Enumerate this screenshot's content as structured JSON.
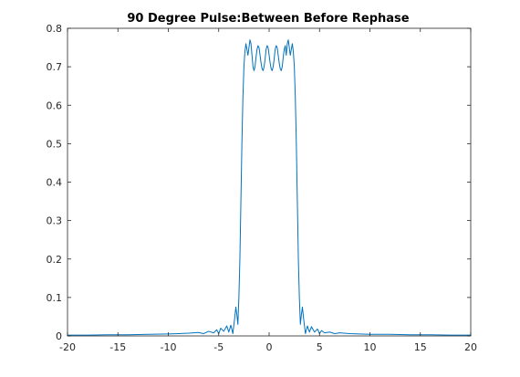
{
  "chart_data": {
    "type": "line",
    "title": "90 Degree Pulse:Between Before Rephase",
    "xlabel": "",
    "ylabel": "",
    "xlim": [
      -20,
      20
    ],
    "ylim": [
      0,
      0.8
    ],
    "xticks": [
      -20,
      -15,
      -10,
      -5,
      0,
      5,
      10,
      15,
      20
    ],
    "xtick_labels": [
      "-20",
      "-15",
      "-10",
      "-5",
      "0",
      "5",
      "10",
      "15",
      "20"
    ],
    "yticks": [
      0,
      0.1,
      0.2,
      0.3,
      0.4,
      0.5,
      0.6,
      0.7,
      0.8
    ],
    "ytick_labels": [
      "0",
      "0.1",
      "0.2",
      "0.3",
      "0.4",
      "0.5",
      "0.6",
      "0.7",
      "0.8"
    ],
    "grid": false,
    "series": [
      {
        "color": "#0072bd",
        "x": [
          -20,
          -18,
          -16,
          -14,
          -12,
          -10,
          -9,
          -8,
          -7,
          -6.5,
          -6,
          -5.5,
          -5.2,
          -5,
          -4.8,
          -4.5,
          -4.2,
          -4.0,
          -3.8,
          -3.6,
          -3.4,
          -3.3,
          -3.2,
          -3.1,
          -3.0,
          -2.9,
          -2.8,
          -2.7,
          -2.6,
          -2.5,
          -2.4,
          -2.3,
          -2.2,
          -2.1,
          -2.0,
          -1.9,
          -1.8,
          -1.7,
          -1.6,
          -1.5,
          -1.4,
          -1.3,
          -1.2,
          -1.1,
          -1.0,
          -0.9,
          -0.8,
          -0.7,
          -0.6,
          -0.5,
          -0.4,
          -0.3,
          -0.2,
          -0.1,
          0,
          0.1,
          0.2,
          0.3,
          0.4,
          0.5,
          0.6,
          0.7,
          0.8,
          0.9,
          1.0,
          1.1,
          1.2,
          1.3,
          1.4,
          1.5,
          1.6,
          1.7,
          1.8,
          1.9,
          2.0,
          2.1,
          2.2,
          2.3,
          2.4,
          2.5,
          2.6,
          2.7,
          2.8,
          2.9,
          3.0,
          3.1,
          3.2,
          3.3,
          3.4,
          3.6,
          3.8,
          4.0,
          4.2,
          4.5,
          4.8,
          5.0,
          5.2,
          5.5,
          6,
          6.5,
          7,
          8,
          9,
          10,
          12,
          14,
          16,
          18,
          20
        ],
        "y": [
          0.002,
          0.002,
          0.003,
          0.003,
          0.004,
          0.005,
          0.006,
          0.007,
          0.009,
          0.006,
          0.012,
          0.008,
          0.016,
          0.006,
          0.02,
          0.012,
          0.026,
          0.01,
          0.028,
          0.006,
          0.05,
          0.075,
          0.055,
          0.03,
          0.1,
          0.2,
          0.35,
          0.5,
          0.62,
          0.7,
          0.74,
          0.76,
          0.745,
          0.73,
          0.75,
          0.77,
          0.76,
          0.73,
          0.7,
          0.69,
          0.7,
          0.725,
          0.745,
          0.755,
          0.75,
          0.73,
          0.71,
          0.695,
          0.69,
          0.7,
          0.72,
          0.745,
          0.755,
          0.75,
          0.73,
          0.71,
          0.695,
          0.69,
          0.7,
          0.72,
          0.745,
          0.755,
          0.75,
          0.73,
          0.71,
          0.695,
          0.69,
          0.7,
          0.725,
          0.745,
          0.755,
          0.73,
          0.76,
          0.77,
          0.75,
          0.73,
          0.745,
          0.76,
          0.74,
          0.7,
          0.62,
          0.5,
          0.35,
          0.2,
          0.1,
          0.03,
          0.055,
          0.075,
          0.05,
          0.006,
          0.026,
          0.01,
          0.024,
          0.01,
          0.018,
          0.006,
          0.014,
          0.008,
          0.01,
          0.006,
          0.008,
          0.006,
          0.005,
          0.004,
          0.004,
          0.003,
          0.003,
          0.002,
          0.002
        ]
      }
    ]
  }
}
